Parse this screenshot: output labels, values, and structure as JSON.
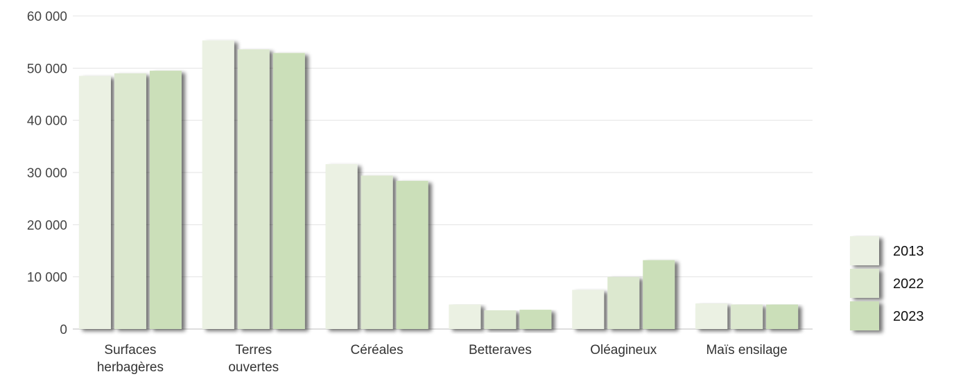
{
  "chart_data": {
    "type": "bar",
    "title": "",
    "xlabel": "",
    "ylabel": "",
    "categories": [
      [
        "Surfaces",
        "herbagères"
      ],
      [
        "Terres",
        "ouvertes"
      ],
      [
        "Céréales"
      ],
      [
        "Betteraves"
      ],
      [
        "Oléagineux"
      ],
      [
        "Maïs ensilage"
      ]
    ],
    "series": [
      {
        "name": "2013",
        "color": "#ebf1e3",
        "values": [
          48500,
          55300,
          31600,
          4700,
          7500,
          4900
        ]
      },
      {
        "name": "2022",
        "color": "#dce8cf",
        "values": [
          49000,
          53600,
          29400,
          3600,
          10000,
          4700
        ]
      },
      {
        "name": "2023",
        "color": "#cbdfb9",
        "values": [
          49500,
          52900,
          28400,
          3700,
          13200,
          4700
        ]
      }
    ],
    "ylim": [
      0,
      60000
    ],
    "yticks": [
      0,
      10000,
      20000,
      30000,
      40000,
      50000,
      60000
    ],
    "ytick_labels": [
      "0",
      "10 000",
      "20 000",
      "30 000",
      "40 000",
      "50 000",
      "60 000"
    ],
    "grid": true,
    "legend_position": "right"
  }
}
